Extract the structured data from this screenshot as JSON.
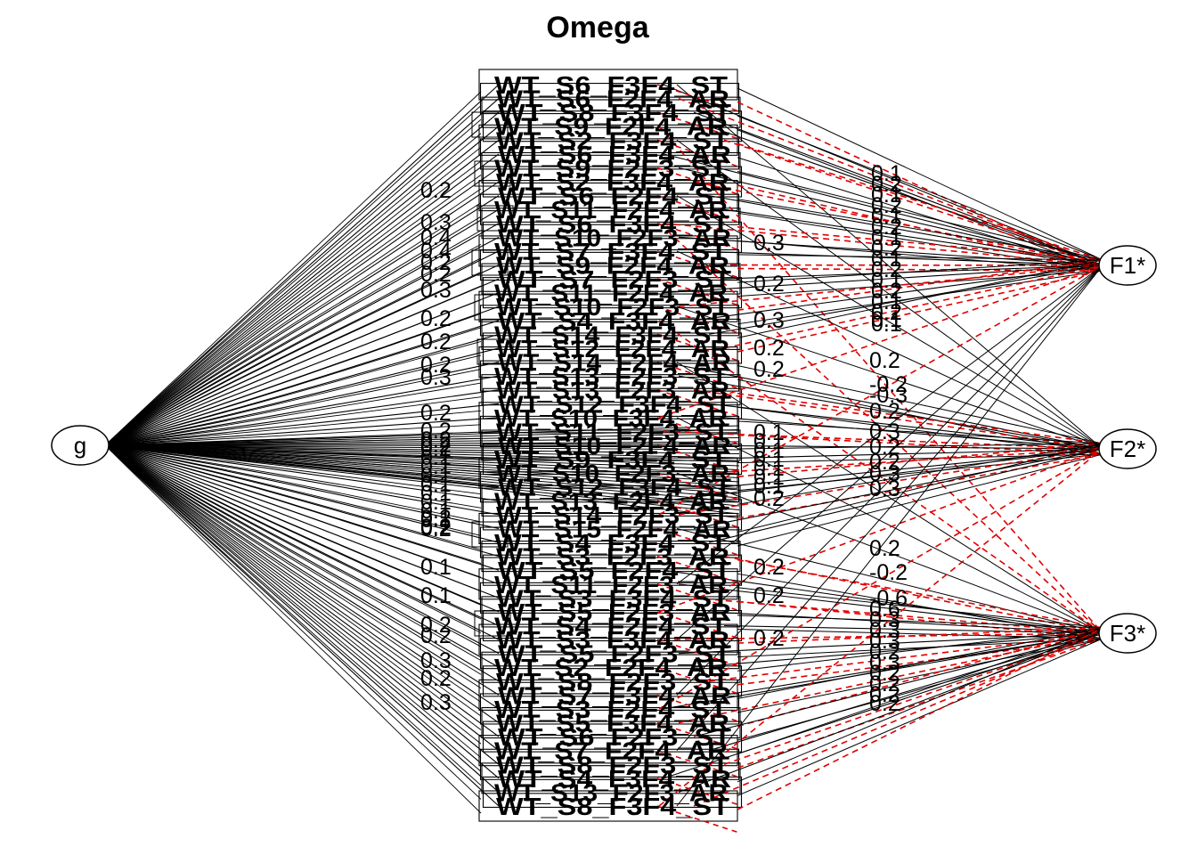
{
  "title": "Omega",
  "nodes": {
    "general": "g",
    "factors": [
      "F1*",
      "F2*",
      "F3*"
    ]
  },
  "colors": {
    "positive_path": "#000000",
    "negative_path": "#e00000",
    "background": "#ffffff"
  },
  "indicators": [
    "WT_S6_F3F4_ST",
    "WT_S6_F2F4_AR",
    "WT_S8_F3F4_ST",
    "WT_S9_F2F4_AR",
    "WT_S2_F3F4_ST",
    "WT_S6_F3F4_AR",
    "WT_S9_F2F3_ST",
    "WT_S2_F3F4_AR",
    "WT_S6_F2F4_ST",
    "WT_S11_F2F4_AR",
    "WT_S6_F3F4_ST",
    "WT_S10_F2F3_AR",
    "WT_S7_F3F4_ST",
    "WT_S9_F2F4_AR",
    "WT_S7_F2F3_ST",
    "WT_S11_F2F4_AR",
    "WT_S10_F2F3_ST",
    "WT_S4_F3F4_AR",
    "WT_S14_F3F4_ST",
    "WT_S12_F2F4_AR",
    "WT_S14_F2F4_AR",
    "WT_S13_F2F3_ST",
    "WT_S13_F2F3_AR",
    "WT_S12_F3F4_ST",
    "WT_S10_F3F4_AR",
    "WT_S11_F2F3_ST",
    "WT_S10_F2F4_AR",
    "WT_S9_F3F4_ST",
    "WT_S10_F2F3_AR",
    "WT_S12_F3F4_ST",
    "WT_S13_F2F4_AR",
    "WT_S14_F2F3_ST",
    "WT_S15_F2F4_AR",
    "WT_S4_F3F4_ST",
    "WT_S3_F2F3_AR",
    "WT_S5_F2F4_ST",
    "WT_S11_F2F3_AR",
    "WT_S3_F3F4_ST",
    "WT_S5_F2F3_AR",
    "WT_S4_F2F4_ST",
    "WT_S3_F3F4_AR",
    "WT_S5_F2F3_ST",
    "WT_S2_F2F4_AR",
    "WT_S8_F2F3_ST",
    "WT_S7_F3F4_AR",
    "WT_S3_F2F4_ST",
    "WT_S5_F3F4_AR",
    "WT_S6_F2F3_ST",
    "WT_S7_F2F4_AR",
    "WT_S8_F2F3_ST",
    "WT_S4_F3F4_AR",
    "WT_S13_F2F3_AR",
    "WT_S8_F3F4_ST"
  ],
  "g_loading_labels": [
    "0.2",
    "0.3",
    "0.4",
    "0.4",
    "0.2",
    "0.2",
    "0.3",
    "0.2",
    "0.2",
    "0.2",
    "0.3",
    "0.2",
    "0.2",
    "0.2",
    "0.2",
    "0.1",
    "0.1",
    "0.1",
    "0.1",
    "0.1",
    "0.1",
    "0.1",
    "0.1",
    "0.2",
    "0.1",
    "0.1",
    "0.2",
    "0.2",
    "0.3",
    "0.2",
    "0.3",
    "0.2",
    "0.2",
    "0.2"
  ],
  "mid_loading_labels": [
    "0.3",
    "0.2",
    "0.3",
    "0.2",
    "0.2",
    "0.1",
    "0.1",
    "0.1",
    "0.1",
    "0.1",
    "0.1",
    "0.1",
    "0.2",
    "0.2",
    "0.2",
    "0.2"
  ],
  "f1_loading_labels": [
    "0.1",
    "0.2",
    "0.1",
    "0.2",
    "0.1",
    "0.2",
    "0.1",
    "0.2",
    "0.1",
    "0.2",
    "0.1",
    "0.2",
    "0.1",
    "0.2",
    "0.1",
    "0.1"
  ],
  "f2_loading_labels": [
    "0.2",
    "-0.2",
    "-0.3",
    "0.2",
    "0.3",
    "0.2",
    "0.2",
    "0.3",
    "0.3"
  ],
  "f3_loading_labels": [
    "0.2",
    "-0.2",
    "-0.6",
    "0.6",
    "0.3",
    "0.3",
    "0.3",
    "0.2",
    "0.3",
    "0.2",
    "0.2",
    "0.2",
    "0.2"
  ]
}
